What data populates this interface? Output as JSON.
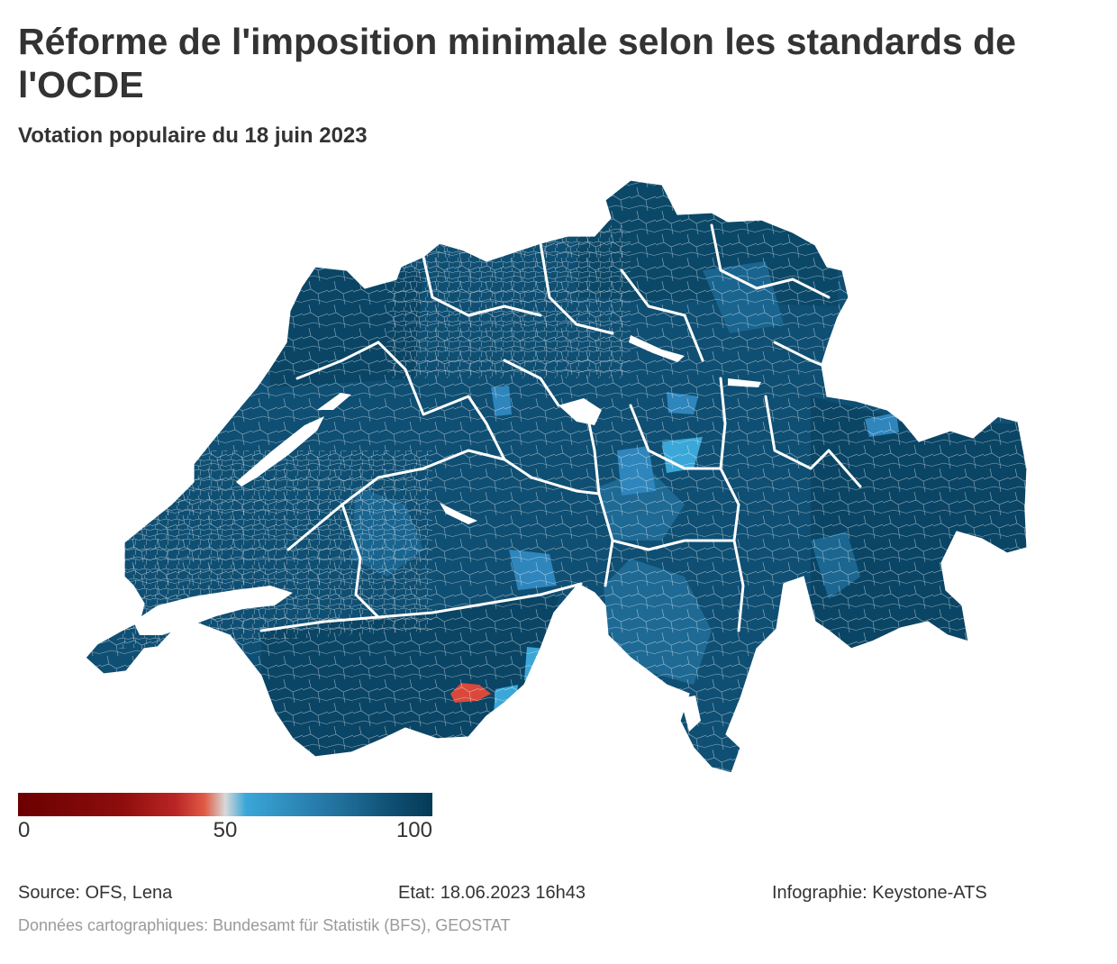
{
  "title": "Réforme de l'imposition minimale selon les standards de l'OCDE",
  "subtitle": "Votation populaire du 18 juin 2023",
  "legend": {
    "ticks": [
      "0",
      "50",
      "100"
    ],
    "stops": [
      "#6b0000",
      "#b92525",
      "#e05a45",
      "#d8d8d8",
      "#3aa7d8",
      "#1e6a95",
      "#053a57"
    ]
  },
  "map": {
    "region": "Suisse",
    "colors": {
      "dark": "#053a57",
      "mid": "#0f4f73",
      "medium": "#1e6a95",
      "light": "#2f86bd",
      "lighter": "#3aa7d8",
      "rejected": "#d9493b",
      "border": "#ffffff"
    }
  },
  "footer": {
    "source": "Source: OFS, Lena",
    "status": "Etat: 18.06.2023 16h43",
    "infographic": "Infographie: Keystone-ATS"
  },
  "credit": "Données cartographiques: Bundesamt für Statistik (BFS), GEOSTAT"
}
